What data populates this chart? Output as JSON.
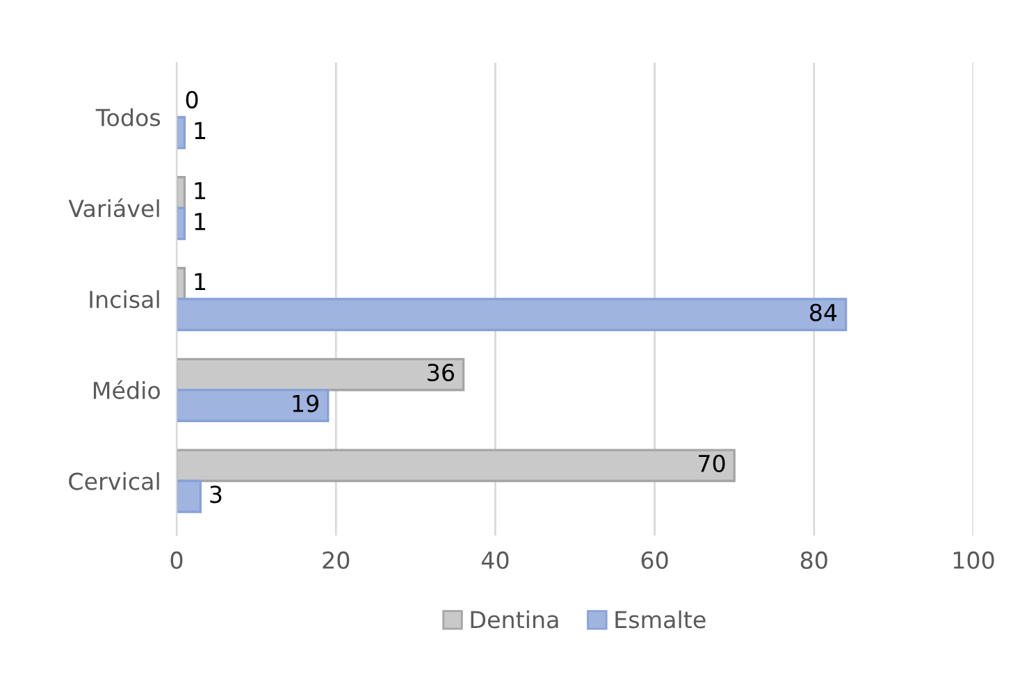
{
  "chart_data": {
    "type": "bar",
    "orientation": "horizontal",
    "categories": [
      "Todos",
      "Variável",
      "Incisal",
      "Médio",
      "Cervical"
    ],
    "series": [
      {
        "name": "Dentina",
        "color": "#c9c9c9",
        "values": [
          0,
          1,
          1,
          36,
          70
        ]
      },
      {
        "name": "Esmalte",
        "color": "#a0b4e0",
        "values": [
          1,
          1,
          84,
          19,
          3
        ]
      }
    ],
    "xlim": [
      0,
      100
    ],
    "xticks": [
      0,
      20,
      40,
      60,
      80,
      100
    ],
    "grid": "x",
    "legend": "bottom",
    "data_labels": true
  }
}
